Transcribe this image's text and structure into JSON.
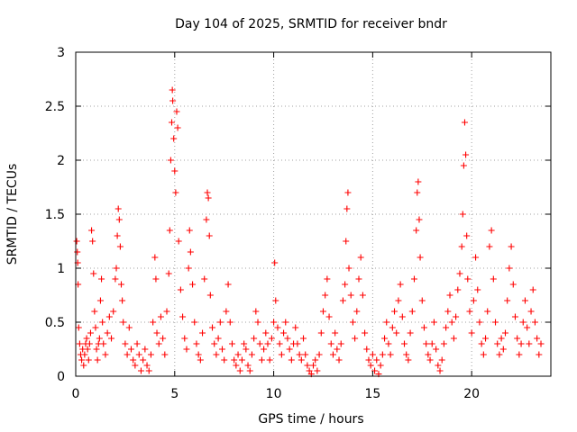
{
  "chart_data": {
    "type": "scatter",
    "title": "Day 104 of 2025, SRMTID for receiver bndr",
    "xlabel": "GPS time / hours",
    "ylabel": "SRMTID / TECUs",
    "xlim": [
      0,
      24
    ],
    "ylim": [
      0,
      3
    ],
    "x_ticks": [
      0,
      5,
      10,
      15,
      20
    ],
    "y_ticks": [
      0,
      0.5,
      1,
      1.5,
      2,
      2.5,
      3
    ],
    "x_tick_labels": [
      "0",
      "5",
      "10",
      "15",
      "20"
    ],
    "y_tick_labels": [
      "0",
      "0.5",
      "1",
      "1.5",
      "2",
      "2.5",
      "3"
    ],
    "grid": true,
    "marker": "plus",
    "series": [
      {
        "name": "SRMTID",
        "color": "#ff0000",
        "points": [
          [
            0.05,
            1.25
          ],
          [
            0.08,
            1.15
          ],
          [
            0.1,
            1.05
          ],
          [
            0.12,
            0.85
          ],
          [
            0.15,
            0.45
          ],
          [
            0.2,
            0.3
          ],
          [
            0.25,
            0.2
          ],
          [
            0.3,
            0.15
          ],
          [
            0.35,
            0.25
          ],
          [
            0.4,
            0.1
          ],
          [
            0.45,
            0.2
          ],
          [
            0.5,
            0.3
          ],
          [
            0.55,
            0.35
          ],
          [
            0.6,
            0.25
          ],
          [
            0.65,
            0.15
          ],
          [
            0.7,
            0.3
          ],
          [
            0.75,
            0.4
          ],
          [
            0.8,
            1.35
          ],
          [
            0.85,
            1.25
          ],
          [
            0.9,
            0.95
          ],
          [
            0.95,
            0.6
          ],
          [
            1.0,
            0.45
          ],
          [
            1.05,
            0.25
          ],
          [
            1.1,
            0.15
          ],
          [
            1.15,
            0.3
          ],
          [
            1.2,
            0.35
          ],
          [
            1.25,
            0.7
          ],
          [
            1.3,
            0.9
          ],
          [
            1.35,
            0.5
          ],
          [
            1.4,
            0.3
          ],
          [
            1.5,
            0.2
          ],
          [
            1.6,
            0.4
          ],
          [
            1.7,
            0.55
          ],
          [
            1.8,
            0.35
          ],
          [
            1.9,
            0.6
          ],
          [
            2.0,
            0.9
          ],
          [
            2.05,
            1.0
          ],
          [
            2.1,
            1.3
          ],
          [
            2.15,
            1.55
          ],
          [
            2.2,
            1.45
          ],
          [
            2.25,
            1.2
          ],
          [
            2.3,
            0.85
          ],
          [
            2.35,
            0.7
          ],
          [
            2.4,
            0.5
          ],
          [
            2.5,
            0.3
          ],
          [
            2.6,
            0.2
          ],
          [
            2.7,
            0.45
          ],
          [
            2.8,
            0.25
          ],
          [
            2.9,
            0.15
          ],
          [
            3.0,
            0.1
          ],
          [
            3.1,
            0.3
          ],
          [
            3.2,
            0.2
          ],
          [
            3.3,
            0.05
          ],
          [
            3.4,
            0.15
          ],
          [
            3.5,
            0.25
          ],
          [
            3.6,
            0.1
          ],
          [
            3.7,
            0.05
          ],
          [
            3.8,
            0.2
          ],
          [
            3.9,
            0.5
          ],
          [
            4.0,
            1.1
          ],
          [
            4.05,
            0.9
          ],
          [
            4.1,
            0.4
          ],
          [
            4.2,
            0.3
          ],
          [
            4.3,
            0.55
          ],
          [
            4.4,
            0.35
          ],
          [
            4.5,
            0.2
          ],
          [
            4.6,
            0.6
          ],
          [
            4.7,
            0.95
          ],
          [
            4.75,
            1.35
          ],
          [
            4.8,
            2.0
          ],
          [
            4.85,
            2.35
          ],
          [
            4.88,
            2.65
          ],
          [
            4.9,
            2.55
          ],
          [
            4.95,
            2.2
          ],
          [
            5.0,
            1.9
          ],
          [
            5.05,
            1.7
          ],
          [
            5.1,
            2.45
          ],
          [
            5.15,
            2.3
          ],
          [
            5.2,
            1.25
          ],
          [
            5.3,
            0.8
          ],
          [
            5.4,
            0.55
          ],
          [
            5.5,
            0.35
          ],
          [
            5.6,
            0.25
          ],
          [
            5.7,
            1.0
          ],
          [
            5.75,
            1.35
          ],
          [
            5.8,
            1.15
          ],
          [
            5.9,
            0.85
          ],
          [
            6.0,
            0.5
          ],
          [
            6.1,
            0.3
          ],
          [
            6.2,
            0.2
          ],
          [
            6.3,
            0.15
          ],
          [
            6.4,
            0.4
          ],
          [
            6.5,
            0.9
          ],
          [
            6.6,
            1.45
          ],
          [
            6.65,
            1.7
          ],
          [
            6.7,
            1.65
          ],
          [
            6.75,
            1.3
          ],
          [
            6.8,
            0.75
          ],
          [
            6.9,
            0.45
          ],
          [
            7.0,
            0.3
          ],
          [
            7.1,
            0.2
          ],
          [
            7.2,
            0.35
          ],
          [
            7.3,
            0.5
          ],
          [
            7.4,
            0.25
          ],
          [
            7.5,
            0.15
          ],
          [
            7.6,
            0.6
          ],
          [
            7.7,
            0.85
          ],
          [
            7.8,
            0.5
          ],
          [
            7.9,
            0.3
          ],
          [
            8.0,
            0.15
          ],
          [
            8.1,
            0.1
          ],
          [
            8.2,
            0.2
          ],
          [
            8.3,
            0.05
          ],
          [
            8.4,
            0.15
          ],
          [
            8.5,
            0.3
          ],
          [
            8.6,
            0.25
          ],
          [
            8.7,
            0.1
          ],
          [
            8.8,
            0.05
          ],
          [
            8.9,
            0.2
          ],
          [
            9.0,
            0.35
          ],
          [
            9.1,
            0.6
          ],
          [
            9.2,
            0.5
          ],
          [
            9.3,
            0.3
          ],
          [
            9.4,
            0.15
          ],
          [
            9.5,
            0.25
          ],
          [
            9.6,
            0.4
          ],
          [
            9.7,
            0.3
          ],
          [
            9.8,
            0.15
          ],
          [
            9.9,
            0.35
          ],
          [
            10.0,
            0.5
          ],
          [
            10.05,
            1.05
          ],
          [
            10.1,
            0.7
          ],
          [
            10.2,
            0.45
          ],
          [
            10.3,
            0.3
          ],
          [
            10.4,
            0.2
          ],
          [
            10.5,
            0.4
          ],
          [
            10.6,
            0.5
          ],
          [
            10.7,
            0.35
          ],
          [
            10.8,
            0.25
          ],
          [
            10.9,
            0.15
          ],
          [
            11.0,
            0.3
          ],
          [
            11.1,
            0.45
          ],
          [
            11.2,
            0.3
          ],
          [
            11.3,
            0.2
          ],
          [
            11.4,
            0.15
          ],
          [
            11.5,
            0.35
          ],
          [
            11.6,
            0.2
          ],
          [
            11.7,
            0.1
          ],
          [
            11.8,
            0.05
          ],
          [
            11.9,
            0.02
          ],
          [
            12.0,
            0.1
          ],
          [
            12.1,
            0.15
          ],
          [
            12.2,
            0.05
          ],
          [
            12.3,
            0.2
          ],
          [
            12.4,
            0.4
          ],
          [
            12.5,
            0.6
          ],
          [
            12.6,
            0.75
          ],
          [
            12.7,
            0.9
          ],
          [
            12.8,
            0.55
          ],
          [
            12.9,
            0.3
          ],
          [
            13.0,
            0.2
          ],
          [
            13.1,
            0.4
          ],
          [
            13.2,
            0.25
          ],
          [
            13.3,
            0.15
          ],
          [
            13.4,
            0.3
          ],
          [
            13.5,
            0.7
          ],
          [
            13.6,
            0.85
          ],
          [
            13.65,
            1.25
          ],
          [
            13.7,
            1.55
          ],
          [
            13.75,
            1.7
          ],
          [
            13.8,
            1.0
          ],
          [
            13.9,
            0.75
          ],
          [
            14.0,
            0.5
          ],
          [
            14.1,
            0.35
          ],
          [
            14.2,
            0.6
          ],
          [
            14.3,
            0.9
          ],
          [
            14.4,
            1.1
          ],
          [
            14.5,
            0.75
          ],
          [
            14.6,
            0.4
          ],
          [
            14.7,
            0.25
          ],
          [
            14.8,
            0.15
          ],
          [
            14.9,
            0.1
          ],
          [
            15.0,
            0.2
          ],
          [
            15.1,
            0.05
          ],
          [
            15.2,
            0.15
          ],
          [
            15.3,
            0.02
          ],
          [
            15.4,
            0.1
          ],
          [
            15.5,
            0.2
          ],
          [
            15.6,
            0.35
          ],
          [
            15.7,
            0.5
          ],
          [
            15.8,
            0.3
          ],
          [
            15.9,
            0.2
          ],
          [
            16.0,
            0.45
          ],
          [
            16.1,
            0.6
          ],
          [
            16.2,
            0.4
          ],
          [
            16.3,
            0.7
          ],
          [
            16.4,
            0.85
          ],
          [
            16.5,
            0.55
          ],
          [
            16.6,
            0.3
          ],
          [
            16.7,
            0.2
          ],
          [
            16.8,
            0.15
          ],
          [
            16.9,
            0.4
          ],
          [
            17.0,
            0.6
          ],
          [
            17.1,
            0.9
          ],
          [
            17.2,
            1.35
          ],
          [
            17.25,
            1.7
          ],
          [
            17.3,
            1.8
          ],
          [
            17.35,
            1.45
          ],
          [
            17.4,
            1.1
          ],
          [
            17.5,
            0.7
          ],
          [
            17.6,
            0.45
          ],
          [
            17.7,
            0.3
          ],
          [
            17.8,
            0.2
          ],
          [
            17.9,
            0.15
          ],
          [
            18.0,
            0.3
          ],
          [
            18.1,
            0.5
          ],
          [
            18.2,
            0.25
          ],
          [
            18.3,
            0.1
          ],
          [
            18.4,
            0.05
          ],
          [
            18.5,
            0.15
          ],
          [
            18.6,
            0.3
          ],
          [
            18.7,
            0.45
          ],
          [
            18.8,
            0.6
          ],
          [
            18.9,
            0.75
          ],
          [
            19.0,
            0.5
          ],
          [
            19.1,
            0.35
          ],
          [
            19.2,
            0.55
          ],
          [
            19.3,
            0.8
          ],
          [
            19.4,
            0.95
          ],
          [
            19.5,
            1.2
          ],
          [
            19.55,
            1.5
          ],
          [
            19.6,
            1.95
          ],
          [
            19.65,
            2.35
          ],
          [
            19.7,
            2.05
          ],
          [
            19.75,
            1.3
          ],
          [
            19.8,
            0.9
          ],
          [
            19.9,
            0.6
          ],
          [
            20.0,
            0.4
          ],
          [
            20.1,
            0.7
          ],
          [
            20.2,
            1.1
          ],
          [
            20.3,
            0.8
          ],
          [
            20.4,
            0.5
          ],
          [
            20.5,
            0.3
          ],
          [
            20.6,
            0.2
          ],
          [
            20.7,
            0.35
          ],
          [
            20.8,
            0.6
          ],
          [
            20.9,
            1.2
          ],
          [
            21.0,
            1.35
          ],
          [
            21.1,
            0.9
          ],
          [
            21.2,
            0.5
          ],
          [
            21.3,
            0.3
          ],
          [
            21.4,
            0.2
          ],
          [
            21.5,
            0.35
          ],
          [
            21.6,
            0.25
          ],
          [
            21.7,
            0.4
          ],
          [
            21.8,
            0.7
          ],
          [
            21.9,
            1.0
          ],
          [
            22.0,
            1.2
          ],
          [
            22.1,
            0.85
          ],
          [
            22.2,
            0.55
          ],
          [
            22.3,
            0.35
          ],
          [
            22.4,
            0.2
          ],
          [
            22.5,
            0.3
          ],
          [
            22.6,
            0.5
          ],
          [
            22.7,
            0.7
          ],
          [
            22.8,
            0.45
          ],
          [
            22.9,
            0.3
          ],
          [
            23.0,
            0.6
          ],
          [
            23.1,
            0.8
          ],
          [
            23.2,
            0.5
          ],
          [
            23.3,
            0.35
          ],
          [
            23.4,
            0.2
          ],
          [
            23.5,
            0.3
          ]
        ]
      }
    ]
  }
}
